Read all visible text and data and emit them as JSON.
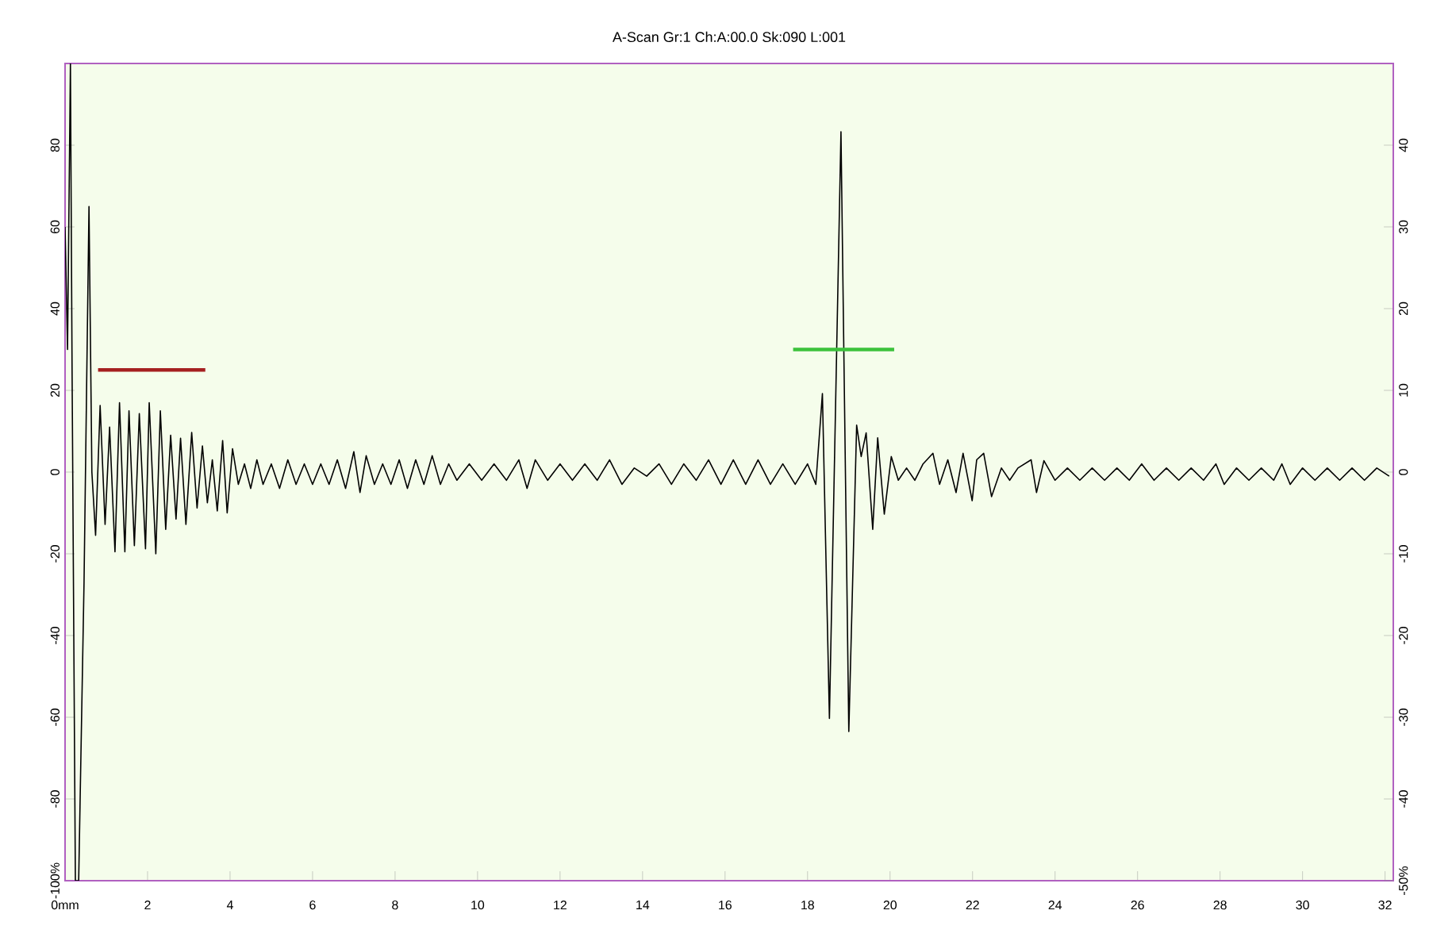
{
  "chart_data": {
    "type": "line",
    "title": "A-Scan Gr:1 Ch:A:00.0 Sk:090 L:001",
    "xlim": [
      0,
      32.2
    ],
    "ylim": [
      -100,
      100
    ],
    "y2lim": [
      -50,
      50
    ],
    "xticks": [
      {
        "value": 0,
        "label": "0mm"
      },
      2,
      4,
      6,
      8,
      10,
      12,
      14,
      16,
      18,
      20,
      22,
      24,
      26,
      28,
      30,
      32
    ],
    "yticks": [
      {
        "value": -100,
        "label": "-100%"
      },
      -80,
      -60,
      -40,
      -20,
      0,
      20,
      40,
      60,
      80
    ],
    "y2ticks": [
      {
        "value": -50,
        "label": "-50%"
      },
      -40,
      -30,
      -20,
      -10,
      0,
      10,
      20,
      30,
      40
    ],
    "series": [
      {
        "color": "#000000",
        "type": "line",
        "x": [
          0,
          0.06,
          0.13,
          0.17,
          0.25,
          0.33,
          0.46,
          0.58,
          0.65,
          0.74,
          0.85,
          0.97,
          1.08,
          1.21,
          1.32,
          1.45,
          1.55,
          1.68,
          1.8,
          1.95,
          2.04,
          2.2,
          2.31,
          2.44,
          2.56,
          2.69,
          2.8,
          2.93,
          3.07,
          3.2,
          3.33,
          3.45,
          3.57,
          3.69,
          3.82,
          3.93,
          4.06,
          4.2,
          4.35,
          4.5,
          4.65,
          4.8,
          5.0,
          5.2,
          5.4,
          5.6,
          5.8,
          6.0,
          6.2,
          6.4,
          6.6,
          6.8,
          7.0,
          7.15,
          7.3,
          7.5,
          7.7,
          7.9,
          8.1,
          8.3,
          8.5,
          8.7,
          8.9,
          9.1,
          9.3,
          9.5,
          9.8,
          10.1,
          10.4,
          10.7,
          11.0,
          11.2,
          11.4,
          11.7,
          12.0,
          12.3,
          12.6,
          12.9,
          13.2,
          13.5,
          13.8,
          14.1,
          14.4,
          14.7,
          15.0,
          15.3,
          15.6,
          15.9,
          16.2,
          16.5,
          16.8,
          17.1,
          17.4,
          17.7,
          18.0,
          18.2,
          18.36,
          18.53,
          18.81,
          19.0,
          19.19,
          19.3,
          19.42,
          19.58,
          19.7,
          19.86,
          20.03,
          20.2,
          20.4,
          20.6,
          20.8,
          21.04,
          21.2,
          21.4,
          21.6,
          21.77,
          21.99,
          22.1,
          22.27,
          22.46,
          22.7,
          22.9,
          23.1,
          23.42,
          23.55,
          23.73,
          24.0,
          24.3,
          24.6,
          24.9,
          25.2,
          25.5,
          25.8,
          26.1,
          26.4,
          26.7,
          27.0,
          27.3,
          27.6,
          27.9,
          28.1,
          28.4,
          28.7,
          29.0,
          29.3,
          29.5,
          29.7,
          30.0,
          30.3,
          30.6,
          30.9,
          31.2,
          31.5,
          31.8,
          32.1
        ],
        "values": [
          60,
          30,
          100,
          25,
          -100,
          -100,
          -27,
          65,
          0,
          -15.5,
          16.3,
          -12.8,
          11,
          -19.5,
          17,
          -19.5,
          15,
          -18,
          14.3,
          -18.8,
          17,
          -20,
          15,
          -14,
          9,
          -11.5,
          8.3,
          -12.8,
          9.7,
          -8.8,
          6.4,
          -7.5,
          3,
          -9.5,
          7.7,
          -10,
          5.7,
          -3,
          2,
          -4,
          3,
          -3,
          2,
          -4,
          3,
          -3,
          2,
          -3,
          2,
          -3,
          3,
          -4,
          5,
          -5,
          4,
          -3,
          2,
          -3,
          3,
          -4,
          3,
          -3,
          4,
          -3,
          2,
          -2,
          2,
          -2,
          2,
          -2,
          3,
          -4,
          3,
          -2,
          2,
          -2,
          2,
          -2,
          3,
          -3,
          1,
          -1,
          2,
          -3,
          2,
          -2,
          3,
          -3,
          3,
          -3,
          3,
          -3,
          2,
          -3,
          2,
          -3,
          19.2,
          -60.3,
          83.3,
          -63.5,
          11.5,
          3.8,
          9.6,
          -14,
          8.4,
          -10.3,
          3.8,
          -2,
          1,
          -2,
          2,
          4.6,
          -3,
          3,
          -5,
          4.6,
          -7,
          3,
          4.6,
          -6,
          1,
          -2,
          1,
          3,
          -5,
          2.8,
          -2,
          1,
          -2,
          1,
          -2,
          1,
          -2,
          2,
          -2,
          1,
          -2,
          1,
          -2,
          2,
          -3,
          1,
          -2,
          1,
          -2,
          2,
          -3,
          1,
          -2,
          1,
          -2,
          1,
          -2,
          1,
          -1
        ]
      },
      {
        "color": "#a52020",
        "type": "line",
        "x": [
          0.8,
          3.4
        ],
        "values": [
          25,
          25
        ]
      },
      {
        "color": "#3cc23c",
        "type": "line",
        "x": [
          17.65,
          20.1
        ],
        "values": [
          30,
          30
        ]
      }
    ]
  }
}
